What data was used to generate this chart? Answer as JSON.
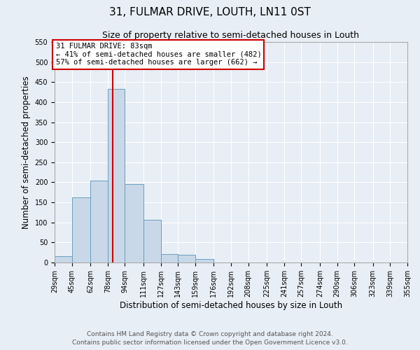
{
  "title": "31, FULMAR DRIVE, LOUTH, LN11 0ST",
  "subtitle": "Size of property relative to semi-detached houses in Louth",
  "xlabel": "Distribution of semi-detached houses by size in Louth",
  "ylabel": "Number of semi-detached properties",
  "footer_lines": [
    "Contains HM Land Registry data © Crown copyright and database right 2024.",
    "Contains public sector information licensed under the Open Government Licence v3.0."
  ],
  "bin_labels": [
    "29sqm",
    "45sqm",
    "62sqm",
    "78sqm",
    "94sqm",
    "111sqm",
    "127sqm",
    "143sqm",
    "159sqm",
    "176sqm",
    "192sqm",
    "208sqm",
    "225sqm",
    "241sqm",
    "257sqm",
    "274sqm",
    "290sqm",
    "306sqm",
    "323sqm",
    "339sqm",
    "355sqm"
  ],
  "bar_values": [
    15,
    163,
    204,
    433,
    196,
    107,
    21,
    19,
    8,
    0,
    0,
    0,
    0,
    0,
    0,
    0,
    0,
    0,
    0,
    0
  ],
  "bar_color": "#c8d8e8",
  "bar_edge_color": "#6a9ec0",
  "property_value": 83,
  "property_label": "31 FULMAR DRIVE: 83sqm",
  "smaller_pct": 41,
  "smaller_count": 482,
  "larger_pct": 57,
  "larger_count": 662,
  "vline_color": "#cc0000",
  "annotation_box_edge_color": "#cc0000",
  "ylim": [
    0,
    550
  ],
  "yticks": [
    0,
    50,
    100,
    150,
    200,
    250,
    300,
    350,
    400,
    450,
    500,
    550
  ],
  "bin_edges_sqm": [
    29,
    45,
    62,
    78,
    94,
    111,
    127,
    143,
    159,
    176,
    192,
    208,
    225,
    241,
    257,
    274,
    290,
    306,
    323,
    339,
    355
  ],
  "background_color": "#e8eef5",
  "plot_background_color": "#e8eef5",
  "grid_color": "#ffffff",
  "title_fontsize": 11,
  "subtitle_fontsize": 9,
  "axis_label_fontsize": 8.5,
  "tick_fontsize": 7,
  "annotation_fontsize": 7.5,
  "footer_fontsize": 6.5
}
